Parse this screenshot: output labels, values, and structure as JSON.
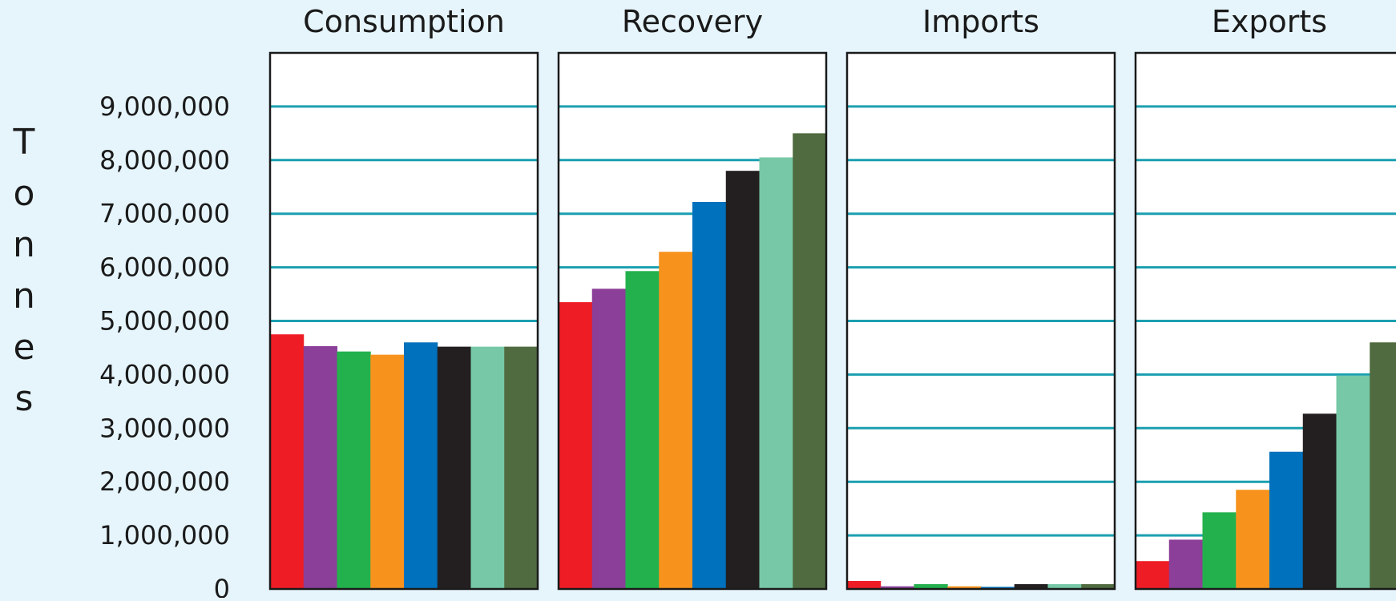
{
  "chart_data": {
    "type": "bar",
    "ylabel": "Tonnes",
    "ylim": [
      0,
      10000000
    ],
    "y_ticks": [
      {
        "value": 0,
        "label": "0"
      },
      {
        "value": 1000000,
        "label": "1,000,000"
      },
      {
        "value": 2000000,
        "label": "2,000,000"
      },
      {
        "value": 3000000,
        "label": "3,000,000"
      },
      {
        "value": 4000000,
        "label": "4,000,000"
      },
      {
        "value": 5000000,
        "label": "5,000,000"
      },
      {
        "value": 6000000,
        "label": "6,000,000"
      },
      {
        "value": 7000000,
        "label": "7,000,000"
      },
      {
        "value": 8000000,
        "label": "8,000,000"
      },
      {
        "value": 9000000,
        "label": "9,000,000"
      }
    ],
    "grid": true,
    "bar_colors": [
      "#ee1c25",
      "#8b3f98",
      "#23b14d",
      "#f7931d",
      "#0071bc",
      "#231f20",
      "#76c8a6",
      "#506b3f"
    ],
    "grid_color": "#1a9fb0",
    "panels": [
      {
        "title": "Consumption",
        "values": [
          4750000,
          4530000,
          4430000,
          4370000,
          4600000,
          4520000,
          4520000,
          4520000
        ]
      },
      {
        "title": "Recovery",
        "values": [
          5350000,
          5600000,
          5930000,
          6290000,
          7220000,
          7800000,
          8050000,
          8500000
        ]
      },
      {
        "title": "Imports",
        "values": [
          150000,
          50000,
          90000,
          50000,
          40000,
          90000,
          90000,
          90000
        ]
      },
      {
        "title": "Exports",
        "values": [
          520000,
          920000,
          1430000,
          1850000,
          2560000,
          3270000,
          3980000,
          4600000
        ]
      }
    ]
  }
}
